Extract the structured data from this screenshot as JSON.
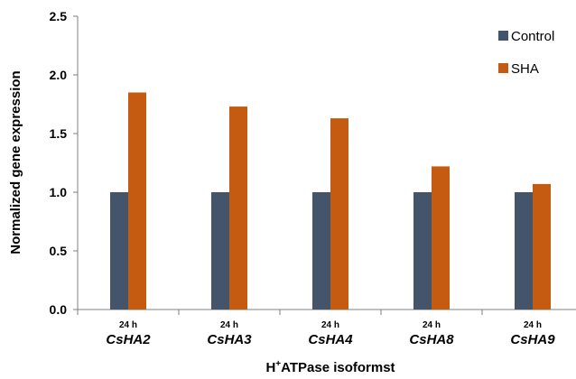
{
  "chart_data": {
    "type": "bar",
    "categories": [
      "CsHA2",
      "CsHA3",
      "CsHA4",
      "CsHA8",
      "CsHA9"
    ],
    "time_labels": [
      "24 h",
      "24 h",
      "24 h",
      "24 h",
      "24 h"
    ],
    "series": [
      {
        "name": "Control",
        "color": "#44546a",
        "values": [
          1.0,
          1.0,
          1.0,
          1.0,
          1.0
        ]
      },
      {
        "name": "SHA",
        "color": "#c55a11",
        "values": [
          1.85,
          1.73,
          1.63,
          1.22,
          1.07
        ]
      }
    ],
    "ylim": [
      0,
      2.5
    ],
    "yticks": [
      "0.0",
      "0.5",
      "1.0",
      "1.5",
      "2.0",
      "2.5"
    ],
    "ylabel": "Normalized gene expression",
    "xlabel": {
      "prefix": "H",
      "superscript": "+",
      "rest": "ATPase isoformst"
    },
    "legend_position": "top-right",
    "grid": false
  }
}
